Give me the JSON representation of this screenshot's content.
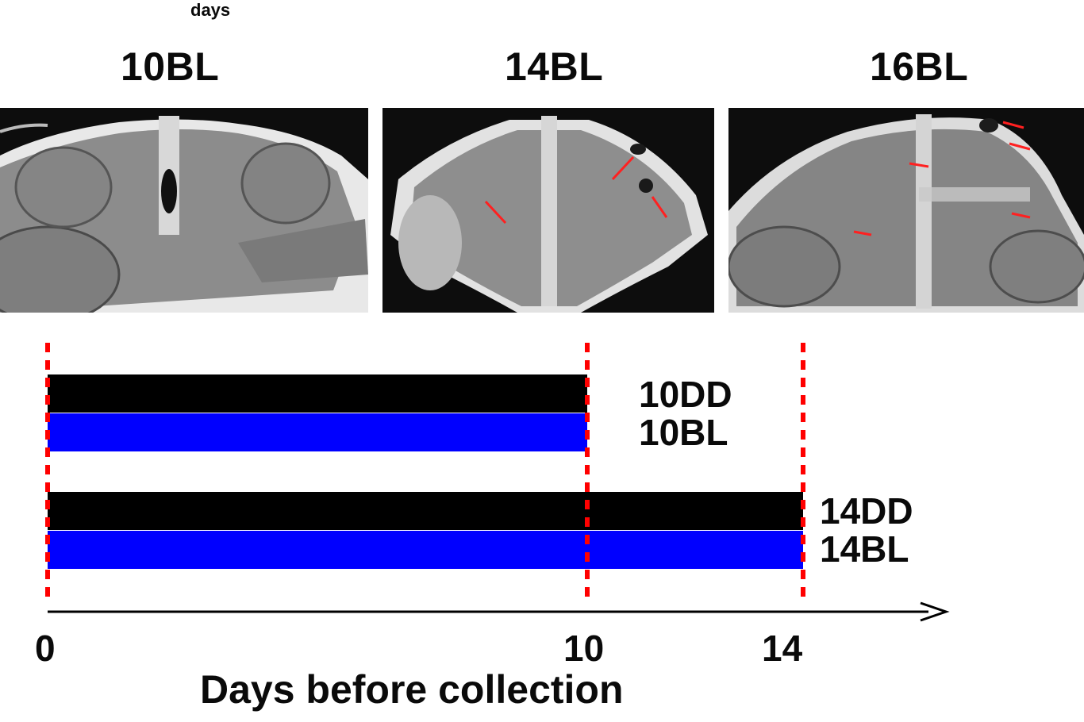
{
  "header": {
    "caption": "days"
  },
  "panels": [
    {
      "label": "10BL"
    },
    {
      "label": "14BL"
    },
    {
      "label": "16BL"
    }
  ],
  "chart_data": {
    "type": "timeline",
    "xlabel": "Days before collection",
    "xticks": [
      0,
      10,
      14
    ],
    "xlim": [
      0,
      16.6
    ],
    "dashed_markers": [
      0,
      10,
      14
    ],
    "bars": [
      {
        "label": "10DD",
        "start": 0,
        "end": 10,
        "color": "#000000"
      },
      {
        "label": "10BL",
        "start": 0,
        "end": 10,
        "color": "#0000ff"
      },
      {
        "label": "14DD",
        "start": 0,
        "end": 14,
        "color": "#000000"
      },
      {
        "label": "14BL",
        "start": 0,
        "end": 14,
        "color": "#0000ff"
      }
    ],
    "group_labels": [
      {
        "lines": [
          "10DD",
          "10BL"
        ]
      },
      {
        "lines": [
          "14DD",
          "14BL"
        ]
      }
    ],
    "marker_color": "#ff0000",
    "axis_color": "#000000"
  }
}
